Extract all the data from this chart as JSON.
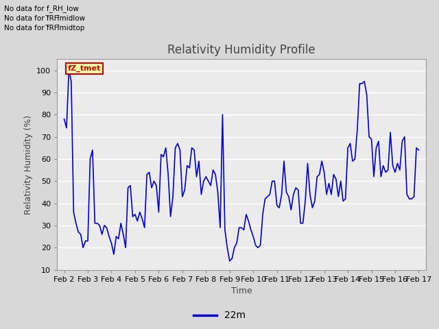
{
  "title": "Relativity Humidity Profile",
  "ylabel": "Relativity Humidity (%)",
  "xlabel": "Time",
  "legend_label": "22m",
  "annotations": [
    "No data for f_RH_low",
    "No data for f¯RH¯midlow",
    "No data for f¯RH¯midtop"
  ],
  "cursor_label": "fZ_tmet",
  "ylim": [
    10,
    105
  ],
  "yticks": [
    10,
    20,
    30,
    40,
    50,
    60,
    70,
    80,
    90,
    100
  ],
  "xtick_labels": [
    "Feb 2",
    "Feb 3",
    "Feb 4",
    "Feb 5",
    "Feb 6",
    "Feb 7",
    "Feb 8",
    "Feb 9",
    "Feb 10",
    "Feb 11",
    "Feb 12",
    "Feb 13",
    "Feb 14",
    "Feb 15",
    "Feb 16",
    "Feb 17"
  ],
  "line_color": "#0000cc",
  "bg_color": "#d8d8d8",
  "plot_bg_color": "#ebebeb",
  "grid_color": "#ffffff",
  "title_color": "#444444",
  "annotation_color": "#000000",
  "cursor_color": "#cc0000",
  "cursor_bg": "#ffffaa",
  "legend_line_color": "#0000cc",
  "x_data": [
    0,
    0.1,
    0.2,
    0.3,
    0.4,
    0.5,
    0.6,
    0.7,
    0.8,
    0.9,
    1.0,
    1.1,
    1.2,
    1.3,
    1.4,
    1.5,
    1.6,
    1.7,
    1.8,
    1.9,
    2.0,
    2.1,
    2.2,
    2.3,
    2.4,
    2.5,
    2.6,
    2.7,
    2.8,
    2.9,
    3.0,
    3.1,
    3.2,
    3.3,
    3.4,
    3.5,
    3.6,
    3.7,
    3.8,
    3.9,
    4.0,
    4.1,
    4.2,
    4.3,
    4.4,
    4.5,
    4.6,
    4.7,
    4.8,
    4.9,
    5.0,
    5.1,
    5.2,
    5.3,
    5.4,
    5.5,
    5.6,
    5.7,
    5.8,
    5.9,
    6.0,
    6.1,
    6.2,
    6.3,
    6.4,
    6.5,
    6.6,
    6.7,
    6.8,
    6.9,
    7.0,
    7.1,
    7.2,
    7.3,
    7.4,
    7.5,
    7.6,
    7.7,
    7.8,
    7.9,
    8.0,
    8.1,
    8.2,
    8.3,
    8.4,
    8.5,
    8.6,
    8.7,
    8.8,
    8.9,
    9.0,
    9.1,
    9.2,
    9.3,
    9.4,
    9.5,
    9.6,
    9.7,
    9.8,
    9.9,
    10.0,
    10.1,
    10.2,
    10.3,
    10.4,
    10.5,
    10.6,
    10.7,
    10.8,
    10.9,
    11.0,
    11.1,
    11.2,
    11.3,
    11.4,
    11.5,
    11.6,
    11.7,
    11.8,
    11.9,
    12.0,
    12.1,
    12.2,
    12.3,
    12.4,
    12.5,
    12.6,
    12.7,
    12.8,
    12.9,
    13.0,
    13.1,
    13.2,
    13.3,
    13.4,
    13.5,
    13.6,
    13.7,
    13.8,
    13.9,
    14.0,
    14.1,
    14.2,
    14.3,
    14.4,
    14.5,
    14.6,
    14.7,
    14.8,
    14.9,
    15.0
  ],
  "y_data": [
    78,
    74,
    100,
    95,
    36,
    31,
    27,
    26,
    20,
    23,
    23,
    60,
    64,
    31,
    31,
    30,
    26,
    30,
    29,
    25,
    22,
    17,
    25,
    24,
    31,
    26,
    20,
    47,
    48,
    34,
    35,
    32,
    36,
    33,
    29,
    53,
    54,
    47,
    50,
    48,
    36,
    62,
    61,
    65,
    53,
    34,
    43,
    65,
    67,
    64,
    43,
    46,
    57,
    56,
    65,
    64,
    52,
    59,
    44,
    50,
    52,
    50,
    48,
    55,
    53,
    45,
    29,
    80,
    28,
    20,
    14,
    15,
    20,
    22,
    29,
    29,
    28,
    35,
    32,
    28,
    25,
    21,
    20,
    21,
    35,
    42,
    43,
    44,
    50,
    50,
    39,
    38,
    44,
    59,
    45,
    43,
    37,
    44,
    47,
    46,
    31,
    31,
    41,
    58,
    44,
    38,
    41,
    52,
    53,
    59,
    54,
    44,
    49,
    44,
    53,
    51,
    43,
    50,
    41,
    42,
    65,
    67,
    59,
    60,
    73,
    94,
    94,
    95,
    89,
    70,
    69,
    52,
    65,
    68,
    52,
    57,
    54,
    55,
    72,
    57,
    54,
    58,
    55,
    68,
    70,
    44,
    42,
    42,
    43,
    65,
    64
  ],
  "annot_lines": [
    "No data for f_RH_low",
    "No data for f̅RH̅midlow",
    "No data for f̅RH̅midtop"
  ]
}
